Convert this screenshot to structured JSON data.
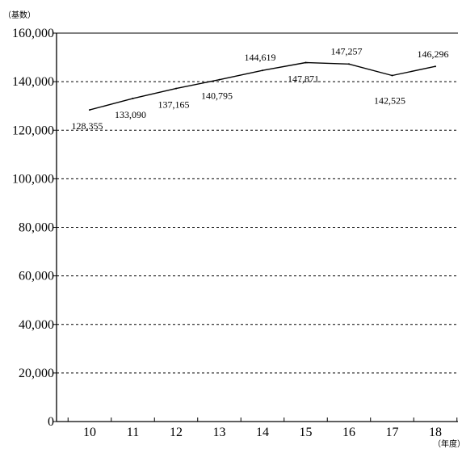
{
  "chart_data": {
    "type": "line",
    "y_unit_label": "（基数）",
    "x_unit_label": "（年度）",
    "categories": [
      "10",
      "11",
      "12",
      "13",
      "14",
      "15",
      "16",
      "17",
      "18"
    ],
    "values": [
      128355,
      133090,
      137165,
      140795,
      144619,
      147871,
      147257,
      142525,
      146296
    ],
    "value_labels": [
      "128,355",
      "133,090",
      "137,165",
      "140,795",
      "144,619",
      "147,871",
      "147,257",
      "142,525",
      "146,296"
    ],
    "label_position": [
      "below",
      "below",
      "below",
      "below",
      "above",
      "below",
      "above",
      "below",
      "above"
    ],
    "ylim": [
      0,
      160000
    ],
    "yticks": [
      0,
      20000,
      40000,
      60000,
      80000,
      100000,
      120000,
      140000,
      160000
    ],
    "ytick_labels": [
      "0",
      "20,000",
      "40,000",
      "60,000",
      "80,000",
      "100,000",
      "120,000",
      "140,000",
      "160,000"
    ],
    "grid": "horizontal-dashed",
    "line_color": "#000000"
  }
}
